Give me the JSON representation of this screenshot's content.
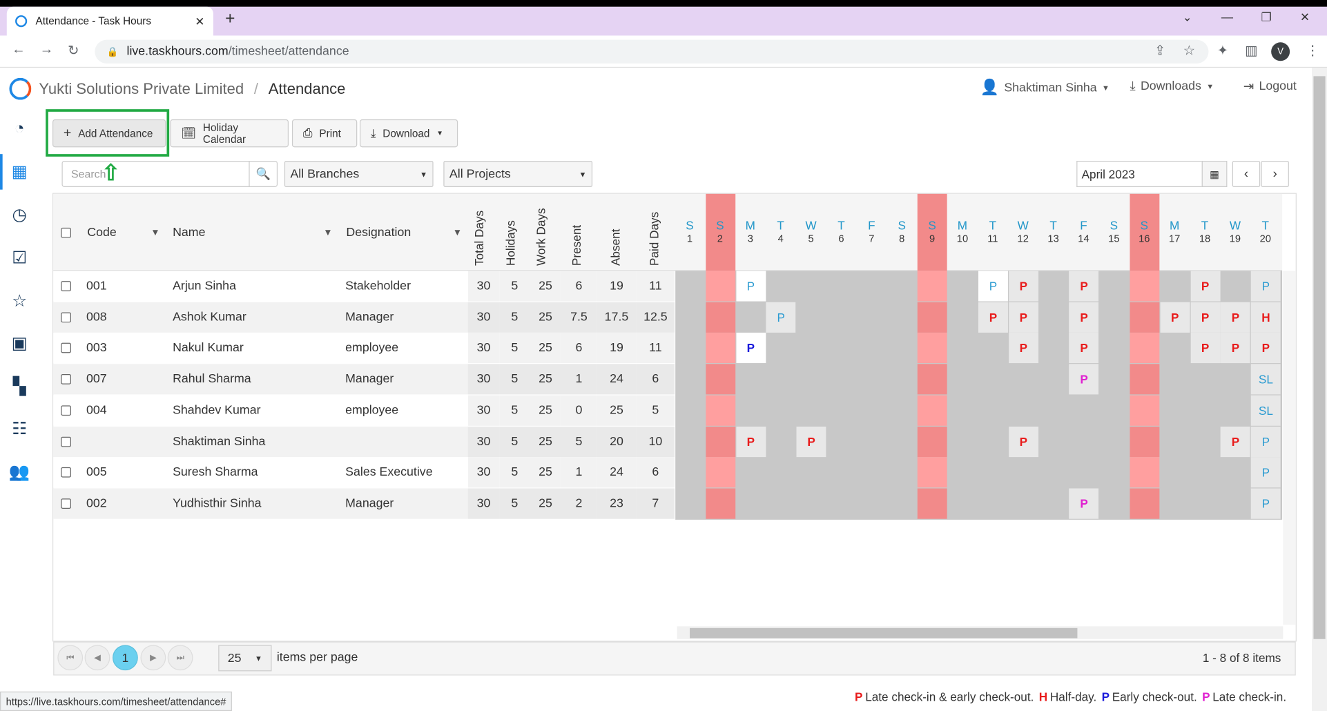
{
  "browser": {
    "tab_title": "Attendance - Task Hours",
    "url_domain": "live.taskhours.com",
    "url_path": "/timesheet/attendance",
    "status_url": "https://live.taskhours.com/timesheet/attendance#",
    "avatar_letter": "V"
  },
  "header": {
    "company": "Yukti Solutions Private Limited",
    "separator": "/",
    "page_title": "Attendance",
    "user_name": "Shaktiman Sinha",
    "downloads_label": "Downloads",
    "logout_label": "Logout"
  },
  "toolbar": {
    "add_label": "Add Attendance",
    "holiday_label": "Holiday Calendar",
    "print_label": "Print",
    "download_label": "Download"
  },
  "filters": {
    "search_placeholder": "Search",
    "branch": "All Branches",
    "project": "All Projects",
    "month": "April 2023"
  },
  "columns": {
    "code": "Code",
    "name": "Name",
    "designation": "Designation",
    "total_days": "Total Days",
    "holidays": "Holidays",
    "work_days": "Work Days",
    "present": "Present",
    "absent": "Absent",
    "paid_days": "Paid Days"
  },
  "days": [
    {
      "l": "S",
      "n": "1"
    },
    {
      "l": "S",
      "n": "2"
    },
    {
      "l": "M",
      "n": "3"
    },
    {
      "l": "T",
      "n": "4"
    },
    {
      "l": "W",
      "n": "5"
    },
    {
      "l": "T",
      "n": "6"
    },
    {
      "l": "F",
      "n": "7"
    },
    {
      "l": "S",
      "n": "8"
    },
    {
      "l": "S",
      "n": "9"
    },
    {
      "l": "M",
      "n": "10"
    },
    {
      "l": "T",
      "n": "11"
    },
    {
      "l": "W",
      "n": "12"
    },
    {
      "l": "T",
      "n": "13"
    },
    {
      "l": "F",
      "n": "14"
    },
    {
      "l": "S",
      "n": "15"
    },
    {
      "l": "S",
      "n": "16"
    },
    {
      "l": "M",
      "n": "17"
    },
    {
      "l": "T",
      "n": "18"
    },
    {
      "l": "W",
      "n": "19"
    },
    {
      "l": "T",
      "n": "20"
    }
  ],
  "rows": [
    {
      "code": "001",
      "name": "Arjun Sinha",
      "designation": "Stakeholder",
      "total": "30",
      "holidays": "5",
      "work": "25",
      "present": "6",
      "absent": "19",
      "paid": "11"
    },
    {
      "code": "008",
      "name": "Ashok Kumar",
      "designation": "Manager",
      "total": "30",
      "holidays": "5",
      "work": "25",
      "present": "7.5",
      "absent": "17.5",
      "paid": "12.5"
    },
    {
      "code": "003",
      "name": "Nakul Kumar",
      "designation": "employee",
      "total": "30",
      "holidays": "5",
      "work": "25",
      "present": "6",
      "absent": "19",
      "paid": "11"
    },
    {
      "code": "007",
      "name": "Rahul Sharma",
      "designation": "Manager",
      "total": "30",
      "holidays": "5",
      "work": "25",
      "present": "1",
      "absent": "24",
      "paid": "6"
    },
    {
      "code": "004",
      "name": "Shahdev Kumar",
      "designation": "employee",
      "total": "30",
      "holidays": "5",
      "work": "25",
      "present": "0",
      "absent": "25",
      "paid": "5"
    },
    {
      "code": "",
      "name": "Shaktiman Sinha",
      "designation": "",
      "total": "30",
      "holidays": "5",
      "work": "25",
      "present": "5",
      "absent": "20",
      "paid": "10"
    },
    {
      "code": "005",
      "name": "Suresh Sharma",
      "designation": "Sales Executive",
      "total": "30",
      "holidays": "5",
      "work": "25",
      "present": "1",
      "absent": "24",
      "paid": "6"
    },
    {
      "code": "002",
      "name": "Yudhisthir Sinha",
      "designation": "Manager",
      "total": "30",
      "holidays": "5",
      "work": "25",
      "present": "2",
      "absent": "23",
      "paid": "7"
    }
  ],
  "marks": [
    {
      "r": 0,
      "d": 3,
      "t": "P",
      "k": "cyan",
      "bg": "white"
    },
    {
      "r": 0,
      "d": 11,
      "t": "P",
      "k": "cyan",
      "bg": "white"
    },
    {
      "r": 0,
      "d": 12,
      "t": "P",
      "k": "red",
      "bg": "light"
    },
    {
      "r": 0,
      "d": 14,
      "t": "P",
      "k": "red",
      "bg": "light"
    },
    {
      "r": 0,
      "d": 18,
      "t": "P",
      "k": "red",
      "bg": "light"
    },
    {
      "r": 0,
      "d": 20,
      "t": "P",
      "k": "cyan",
      "bg": "light"
    },
    {
      "r": 1,
      "d": 4,
      "t": "P",
      "k": "cyan",
      "bg": "light"
    },
    {
      "r": 1,
      "d": 11,
      "t": "P",
      "k": "red",
      "bg": "light"
    },
    {
      "r": 1,
      "d": 12,
      "t": "P",
      "k": "red",
      "bg": "light"
    },
    {
      "r": 1,
      "d": 14,
      "t": "P",
      "k": "red",
      "bg": "light"
    },
    {
      "r": 1,
      "d": 17,
      "t": "P",
      "k": "red",
      "bg": "light"
    },
    {
      "r": 1,
      "d": 18,
      "t": "P",
      "k": "red",
      "bg": "light"
    },
    {
      "r": 1,
      "d": 19,
      "t": "P",
      "k": "red",
      "bg": "light"
    },
    {
      "r": 1,
      "d": 20,
      "t": "H",
      "k": "red",
      "bg": "light"
    },
    {
      "r": 2,
      "d": 3,
      "t": "P",
      "k": "blue",
      "bg": "white"
    },
    {
      "r": 2,
      "d": 12,
      "t": "P",
      "k": "red",
      "bg": "light"
    },
    {
      "r": 2,
      "d": 14,
      "t": "P",
      "k": "red",
      "bg": "light"
    },
    {
      "r": 2,
      "d": 18,
      "t": "P",
      "k": "red",
      "bg": "light"
    },
    {
      "r": 2,
      "d": 19,
      "t": "P",
      "k": "red",
      "bg": "light"
    },
    {
      "r": 2,
      "d": 20,
      "t": "P",
      "k": "red",
      "bg": "light"
    },
    {
      "r": 3,
      "d": 14,
      "t": "P",
      "k": "mag",
      "bg": "light"
    },
    {
      "r": 3,
      "d": 20,
      "t": "SL",
      "k": "cyan",
      "bg": "light"
    },
    {
      "r": 4,
      "d": 20,
      "t": "SL",
      "k": "cyan",
      "bg": "light"
    },
    {
      "r": 5,
      "d": 3,
      "t": "P",
      "k": "red",
      "bg": "light"
    },
    {
      "r": 5,
      "d": 5,
      "t": "P",
      "k": "red",
      "bg": "light"
    },
    {
      "r": 5,
      "d": 12,
      "t": "P",
      "k": "red",
      "bg": "light"
    },
    {
      "r": 5,
      "d": 19,
      "t": "P",
      "k": "red",
      "bg": "light"
    },
    {
      "r": 5,
      "d": 20,
      "t": "P",
      "k": "cyan",
      "bg": "light"
    },
    {
      "r": 6,
      "d": 20,
      "t": "P",
      "k": "cyan",
      "bg": "light"
    },
    {
      "r": 7,
      "d": 14,
      "t": "P",
      "k": "mag",
      "bg": "light"
    },
    {
      "r": 7,
      "d": 20,
      "t": "P",
      "k": "cyan",
      "bg": "light"
    }
  ],
  "weekend_days": [
    2,
    9,
    16
  ],
  "pager": {
    "current_page": "1",
    "per_page": "25",
    "per_page_label": "items per page",
    "info": "1 - 8 of 8 items"
  },
  "legend": {
    "p_late_both": "P",
    "late_both_text": "Late check-in & early check-out.",
    "h_half": "H",
    "half_text": "Half-day.",
    "p_early": "P",
    "early_text": "Early check-out.",
    "p_late": "P",
    "late_text": "Late check-in."
  },
  "colors": {
    "accent": "#1e88e5",
    "highlight_box": "#22aa44",
    "weekend": "#ff9f9f",
    "mark_red": "#e81c1c",
    "mark_blue": "#1a1adb",
    "mark_cyan": "#2b9bd1",
    "mark_magenta": "#e020d0"
  },
  "icons": [
    "favicon-icon",
    "close-icon",
    "new-tab-icon",
    "back-icon",
    "forward-icon",
    "reload-icon",
    "lock-icon",
    "share-icon",
    "star-icon",
    "extensions-icon",
    "sidepanel-icon",
    "user-icon",
    "download-icon",
    "logout-icon",
    "dashboard-icon",
    "calendar-icon",
    "clock-icon",
    "task-icon",
    "star-nav-icon",
    "id-card-icon",
    "apps-icon",
    "checklist-icon",
    "team-icon",
    "plus-icon",
    "calendar-edit-icon",
    "printer-icon",
    "search-icon",
    "filter-icon",
    "chevron-left-icon",
    "chevron-right-icon",
    "arrow-up-icon"
  ]
}
